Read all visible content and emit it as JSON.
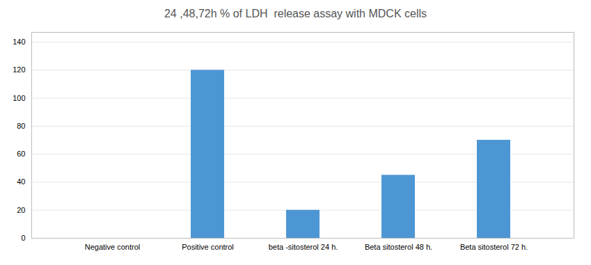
{
  "chart_data": {
    "type": "bar",
    "title": "24 ,48,72h % of LDH  release assay with MDCK cells",
    "categories": [
      "Negative control",
      "Positive control",
      "beta -sitosterol 24 h.",
      "Beta sitosterol 48 h.",
      "Beta sitosterol 72 h."
    ],
    "values": [
      0,
      120,
      20,
      45,
      70
    ],
    "color": "#4d96d4",
    "ylim": [
      0,
      147
    ],
    "yticks": [
      0,
      20,
      40,
      60,
      80,
      100,
      120,
      140
    ],
    "grid": true
  }
}
